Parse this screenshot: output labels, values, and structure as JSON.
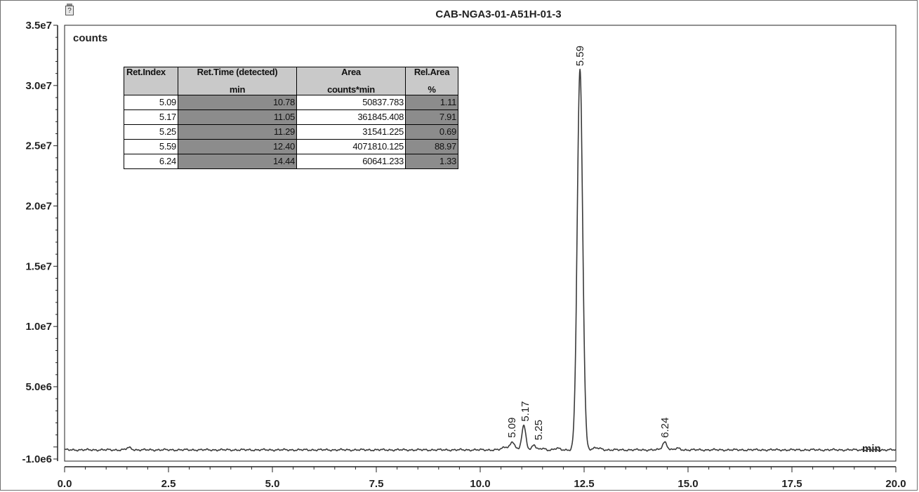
{
  "chart_data": {
    "type": "line",
    "title": "CAB-NGA3-01-A51H-01-3",
    "ylabel": "counts",
    "xlabel": "min",
    "xlim": [
      0,
      20
    ],
    "ylim": [
      -1000000,
      35000000
    ],
    "x_ticks": [
      "0.0",
      "2.5",
      "5.0",
      "7.5",
      "10.0",
      "12.5",
      "15.0",
      "17.5",
      "20.0"
    ],
    "y_ticks": [
      "3.5e7",
      "3.0e7",
      "2.5e7",
      "2.0e7",
      "1.5e7",
      "1.0e7",
      "5.0e6",
      "-1.0e6"
    ],
    "y_tick_values": [
      35000000,
      30000000,
      25000000,
      20000000,
      15000000,
      10000000,
      5000000,
      -1000000
    ],
    "baseline": 0,
    "peaks": [
      {
        "label": "5.09",
        "time": 10.78,
        "height": 650000,
        "width": 0.05
      },
      {
        "label": "5.17",
        "time": 11.05,
        "height": 2000000,
        "width": 0.05
      },
      {
        "label": "5.25",
        "time": 11.29,
        "height": 450000,
        "width": 0.04
      },
      {
        "label": "5.59",
        "time": 12.4,
        "height": 31500000,
        "width": 0.065
      },
      {
        "label": "6.24",
        "time": 14.44,
        "height": 650000,
        "width": 0.055
      }
    ],
    "minor_features": [
      {
        "time": 1.55,
        "height": 180000,
        "width": 0.06
      },
      {
        "time": 10.62,
        "height": 250000,
        "width": 0.08
      },
      {
        "time": 11.5,
        "height": 120000,
        "width": 0.06
      },
      {
        "time": 11.85,
        "height": 120000,
        "width": 0.06
      },
      {
        "time": 12.8,
        "height": 150000,
        "width": 0.1
      },
      {
        "time": 14.75,
        "height": 120000,
        "width": 0.06
      }
    ]
  },
  "table": {
    "headers": [
      {
        "line1": "Ret.Index",
        "line2": ""
      },
      {
        "line1": "Ret.Time (detected)",
        "line2": "min"
      },
      {
        "line1": "Area",
        "line2": "counts*min"
      },
      {
        "line1": "Rel.Area",
        "line2": "%"
      }
    ],
    "rows": [
      [
        "5.09",
        "10.78",
        "50837.783",
        "1.11"
      ],
      [
        "5.17",
        "11.05",
        "361845.408",
        "7.91"
      ],
      [
        "5.25",
        "11.29",
        "31541.225",
        "0.69"
      ],
      [
        "5.59",
        "12.40",
        "4071810.125",
        "88.97"
      ],
      [
        "6.24",
        "14.44",
        "60641.233",
        "1.33"
      ]
    ]
  },
  "colors": {
    "trace": "#3a3a3a",
    "header_bg": "#c9c9c9",
    "shade_bg": "#8c8c8c"
  }
}
